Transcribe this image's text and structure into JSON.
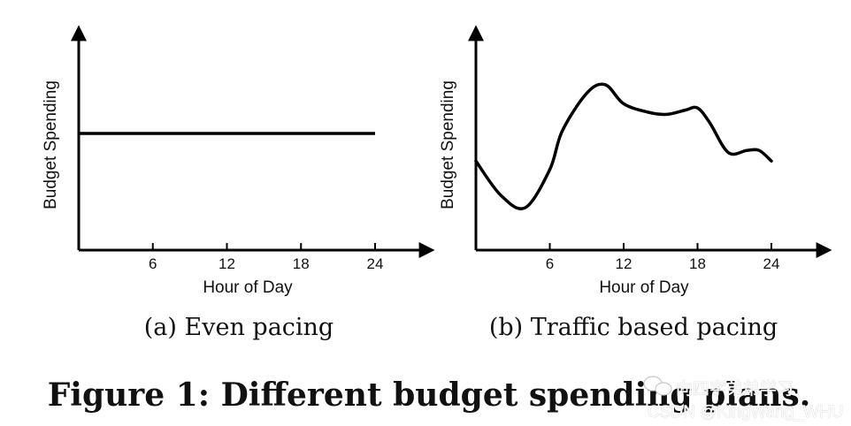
{
  "chart_data": [
    {
      "type": "line",
      "title": "",
      "caption": "(a) Even pacing",
      "xlabel": "Hour of Day",
      "ylabel": "Budget Spending",
      "xticks": [
        6,
        12,
        18,
        24
      ],
      "xlim": [
        0,
        28
      ],
      "ylim": [
        0,
        1
      ],
      "grid": false,
      "series": [
        {
          "x": [
            0,
            24
          ],
          "y": [
            0.55,
            0.55
          ]
        }
      ]
    },
    {
      "type": "line",
      "title": "",
      "caption": "(b) Traffic based pacing",
      "xlabel": "Hour of Day",
      "ylabel": "Budget Spending",
      "xticks": [
        6,
        12,
        18,
        24
      ],
      "xlim": [
        0,
        28
      ],
      "ylim": [
        0,
        1
      ],
      "grid": false,
      "series": [
        {
          "x": [
            0,
            2,
            4,
            6,
            7,
            9,
            10.5,
            12,
            14,
            15.5,
            17,
            18,
            19,
            20.5,
            22,
            23,
            24
          ],
          "y": [
            0.42,
            0.26,
            0.2,
            0.38,
            0.56,
            0.74,
            0.78,
            0.69,
            0.65,
            0.64,
            0.66,
            0.67,
            0.6,
            0.46,
            0.47,
            0.47,
            0.42
          ]
        }
      ]
    }
  ],
  "figure_caption": "Figure 1: Different budget spending plans.",
  "watermark": {
    "line1": "向四字弟弟学习",
    "line2": "CSDN @KingWang_WHU"
  }
}
